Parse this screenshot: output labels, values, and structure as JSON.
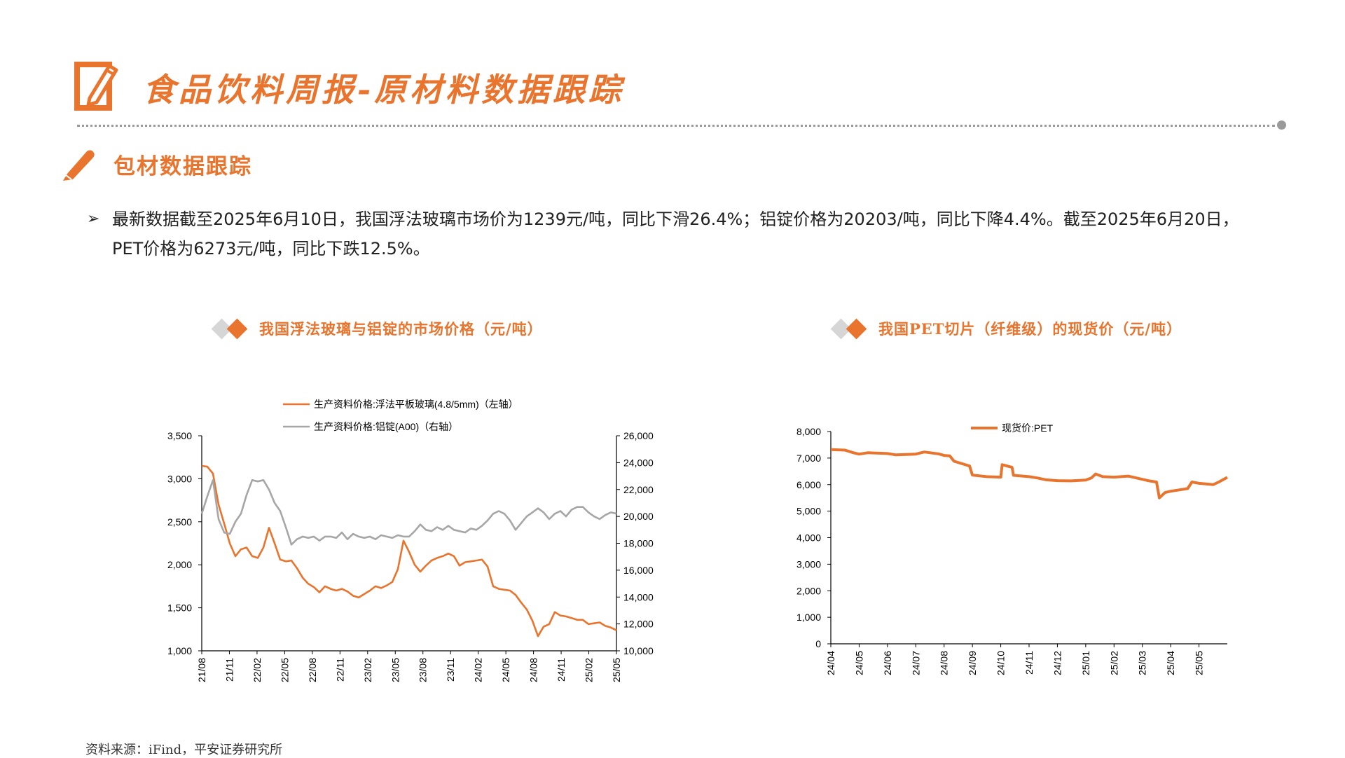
{
  "header": {
    "title": "食品饮料周报-原材料数据跟踪",
    "icon": "pencil-in-box-icon",
    "accent": "#e8742d"
  },
  "section": {
    "title": "包材数据跟踪",
    "icon": "pencil-icon"
  },
  "summary": {
    "bullet": "➢",
    "text": "最新数据截至2025年6月10日，我国浮法玻璃市场价为1239元/吨，同比下滑26.4%；铝锭价格为20203/吨，同比下降4.4%。截至2025年6月20日，PET价格为6273元/吨，同比下跌12.5%。"
  },
  "chart_data": [
    {
      "type": "line",
      "title": "我国浮法玻璃与铝锭的市场价格（元/吨）",
      "x_ticks": [
        "21/08",
        "21/11",
        "22/02",
        "22/05",
        "22/08",
        "22/11",
        "23/02",
        "23/05",
        "23/08",
        "23/11",
        "24/02",
        "24/05",
        "24/08",
        "24/11",
        "25/02",
        "25/05"
      ],
      "x_range": [
        "2021-08",
        "2025-06"
      ],
      "y_left": {
        "ticks": [
          "1,000",
          "1,500",
          "2,000",
          "2,500",
          "3,000",
          "3,500"
        ],
        "range": [
          1000,
          3500
        ]
      },
      "y_right": {
        "ticks": [
          "10,000",
          "12,000",
          "14,000",
          "16,000",
          "18,000",
          "20,000",
          "22,000",
          "24,000",
          "26,000"
        ],
        "range": [
          10000,
          26000
        ]
      },
      "legend_position": "top-center",
      "series": [
        {
          "name": "生产资料价格:浮法平板玻璃(4.8/5mm)（左轴）",
          "axis": "left",
          "color": "#e8742d",
          "points": [
            [
              0,
              3150
            ],
            [
              0.5,
              3140
            ],
            [
              1,
              3060
            ],
            [
              1.5,
              2700
            ],
            [
              2,
              2480
            ],
            [
              2.5,
              2250
            ],
            [
              3,
              2100
            ],
            [
              3.5,
              2180
            ],
            [
              4,
              2200
            ],
            [
              4.5,
              2100
            ],
            [
              5,
              2080
            ],
            [
              5.5,
              2200
            ],
            [
              6,
              2430
            ],
            [
              6.5,
              2250
            ],
            [
              7,
              2060
            ],
            [
              7.5,
              2040
            ],
            [
              8,
              2050
            ],
            [
              8.5,
              1960
            ],
            [
              9,
              1850
            ],
            [
              9.5,
              1780
            ],
            [
              10,
              1740
            ],
            [
              10.5,
              1680
            ],
            [
              11,
              1750
            ],
            [
              11.5,
              1720
            ],
            [
              12,
              1700
            ],
            [
              12.5,
              1720
            ],
            [
              13,
              1690
            ],
            [
              13.5,
              1640
            ],
            [
              14,
              1620
            ],
            [
              14.5,
              1660
            ],
            [
              15,
              1700
            ],
            [
              15.5,
              1750
            ],
            [
              16,
              1730
            ],
            [
              16.5,
              1760
            ],
            [
              17,
              1800
            ],
            [
              17.5,
              1950
            ],
            [
              18,
              2280
            ],
            [
              18.5,
              2150
            ],
            [
              19,
              2000
            ],
            [
              19.5,
              1920
            ],
            [
              20,
              1990
            ],
            [
              20.5,
              2050
            ],
            [
              21,
              2080
            ],
            [
              21.5,
              2100
            ],
            [
              22,
              2130
            ],
            [
              22.5,
              2100
            ],
            [
              23,
              1990
            ],
            [
              23.5,
              2030
            ],
            [
              24,
              2040
            ],
            [
              24.5,
              2050
            ],
            [
              25,
              2060
            ],
            [
              25.5,
              1980
            ],
            [
              26,
              1750
            ],
            [
              26.5,
              1720
            ],
            [
              27,
              1710
            ],
            [
              27.5,
              1700
            ],
            [
              28,
              1650
            ],
            [
              28.5,
              1560
            ],
            [
              29,
              1480
            ],
            [
              29.5,
              1350
            ],
            [
              30,
              1170
            ],
            [
              30.5,
              1280
            ],
            [
              31,
              1310
            ],
            [
              31.5,
              1450
            ],
            [
              32,
              1410
            ],
            [
              32.5,
              1400
            ],
            [
              33,
              1380
            ],
            [
              33.5,
              1360
            ],
            [
              34,
              1360
            ],
            [
              34.5,
              1310
            ],
            [
              35,
              1320
            ],
            [
              35.5,
              1330
            ],
            [
              36,
              1290
            ],
            [
              36.5,
              1270
            ],
            [
              37,
              1239
            ]
          ]
        },
        {
          "name": "生产资料价格:铝锭(A00)（右轴）",
          "axis": "right",
          "color": "#a6a6a6",
          "points": [
            [
              0,
              20200
            ],
            [
              0.5,
              21500
            ],
            [
              1,
              22700
            ],
            [
              1.5,
              19800
            ],
            [
              2,
              18800
            ],
            [
              2.5,
              18700
            ],
            [
              3,
              19600
            ],
            [
              3.5,
              20200
            ],
            [
              4,
              21600
            ],
            [
              4.5,
              22700
            ],
            [
              5,
              22600
            ],
            [
              5.5,
              22700
            ],
            [
              6,
              22000
            ],
            [
              6.5,
              21000
            ],
            [
              7,
              20400
            ],
            [
              7.5,
              19200
            ],
            [
              8,
              17900
            ],
            [
              8.5,
              18300
            ],
            [
              9,
              18500
            ],
            [
              9.5,
              18400
            ],
            [
              10,
              18500
            ],
            [
              10.5,
              18200
            ],
            [
              11,
              18500
            ],
            [
              11.5,
              18500
            ],
            [
              12,
              18400
            ],
            [
              12.5,
              18800
            ],
            [
              13,
              18300
            ],
            [
              13.5,
              18700
            ],
            [
              14,
              18500
            ],
            [
              14.5,
              18400
            ],
            [
              15,
              18500
            ],
            [
              15.5,
              18300
            ],
            [
              16,
              18600
            ],
            [
              16.5,
              18500
            ],
            [
              17,
              18400
            ],
            [
              17.5,
              18600
            ],
            [
              18,
              18500
            ],
            [
              18.5,
              18500
            ],
            [
              19,
              18900
            ],
            [
              19.5,
              19400
            ],
            [
              20,
              19000
            ],
            [
              20.5,
              18900
            ],
            [
              21,
              19200
            ],
            [
              21.5,
              19000
            ],
            [
              22,
              19300
            ],
            [
              22.5,
              19000
            ],
            [
              23,
              18900
            ],
            [
              23.5,
              18800
            ],
            [
              24,
              19100
            ],
            [
              24.5,
              19000
            ],
            [
              25,
              19300
            ],
            [
              25.5,
              19700
            ],
            [
              26,
              20200
            ],
            [
              26.5,
              20400
            ],
            [
              27,
              20200
            ],
            [
              27.5,
              19700
            ],
            [
              28,
              19000
            ],
            [
              28.5,
              19500
            ],
            [
              29,
              20000
            ],
            [
              29.5,
              20300
            ],
            [
              30,
              20600
            ],
            [
              30.5,
              20300
            ],
            [
              31,
              19800
            ],
            [
              31.5,
              20200
            ],
            [
              32,
              20400
            ],
            [
              32.5,
              20000
            ],
            [
              33,
              20500
            ],
            [
              33.5,
              20700
            ],
            [
              34,
              20700
            ],
            [
              34.5,
              20300
            ],
            [
              35,
              20000
            ],
            [
              35.5,
              19800
            ],
            [
              36,
              20100
            ],
            [
              36.5,
              20300
            ],
            [
              37,
              20203
            ]
          ]
        }
      ]
    },
    {
      "type": "line",
      "title": "我国PET切片（纤维级）的现货价（元/吨）",
      "x_ticks": [
        "24/04",
        "24/05",
        "24/06",
        "24/07",
        "24/08",
        "24/09",
        "24/10",
        "24/11",
        "24/12",
        "25/01",
        "25/02",
        "25/03",
        "25/04",
        "25/05"
      ],
      "x_range": [
        "2024-04",
        "2025-06"
      ],
      "y_left": {
        "ticks": [
          "0",
          "1,000",
          "2,000",
          "3,000",
          "4,000",
          "5,000",
          "6,000",
          "7,000",
          "8,000"
        ],
        "range": [
          0,
          8000
        ]
      },
      "legend_position": "top-center",
      "series": [
        {
          "name": "现货价:PET",
          "axis": "left",
          "color": "#e8742d",
          "points": [
            [
              0,
              7320
            ],
            [
              0.5,
              7300
            ],
            [
              0.8,
              7200
            ],
            [
              1,
              7150
            ],
            [
              1.3,
              7200
            ],
            [
              2,
              7170
            ],
            [
              2.3,
              7120
            ],
            [
              3,
              7150
            ],
            [
              3.3,
              7230
            ],
            [
              3.8,
              7160
            ],
            [
              4,
              7100
            ],
            [
              4.2,
              7080
            ],
            [
              4.35,
              6880
            ],
            [
              4.6,
              6800
            ],
            [
              4.9,
              6700
            ],
            [
              5,
              6360
            ],
            [
              5.5,
              6300
            ],
            [
              6,
              6280
            ],
            [
              6.05,
              6750
            ],
            [
              6.4,
              6650
            ],
            [
              6.45,
              6350
            ],
            [
              7,
              6300
            ],
            [
              7.3,
              6250
            ],
            [
              7.6,
              6180
            ],
            [
              8,
              6150
            ],
            [
              8.5,
              6140
            ],
            [
              9,
              6170
            ],
            [
              9.2,
              6250
            ],
            [
              9.35,
              6400
            ],
            [
              9.6,
              6300
            ],
            [
              10,
              6280
            ],
            [
              10.5,
              6320
            ],
            [
              11,
              6200
            ],
            [
              11.2,
              6150
            ],
            [
              11.5,
              6100
            ],
            [
              11.6,
              5500
            ],
            [
              11.8,
              5700
            ],
            [
              12,
              5750
            ],
            [
              12.3,
              5800
            ],
            [
              12.6,
              5850
            ],
            [
              12.75,
              6100
            ],
            [
              13,
              6050
            ],
            [
              13.5,
              6000
            ],
            [
              13.7,
              6100
            ],
            [
              14,
              6273
            ]
          ]
        }
      ]
    }
  ],
  "source": "资料来源：iFind，平安证券研究所"
}
